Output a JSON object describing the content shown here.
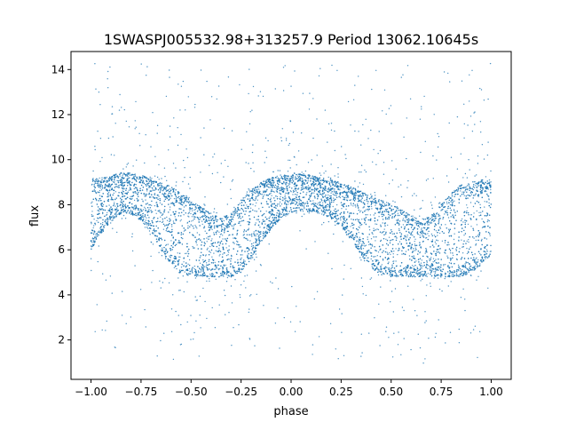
{
  "chart_data": {
    "type": "scatter",
    "title": "1SWASPJ005532.98+313257.9 Period 13062.10645s",
    "xlabel": "phase",
    "ylabel": "flux",
    "xlim": [
      -1.1,
      1.1
    ],
    "ylim": [
      0.25,
      14.8
    ],
    "xticks": [
      -1.0,
      -0.75,
      -0.5,
      -0.25,
      0.0,
      0.25,
      0.5,
      0.75,
      1.0
    ],
    "xtick_labels": [
      "−1.00",
      "−0.75",
      "−0.50",
      "−0.25",
      "0.00",
      "0.25",
      "0.50",
      "0.75",
      "1.00"
    ],
    "yticks": [
      2,
      4,
      6,
      8,
      10,
      12,
      14
    ],
    "ytick_labels": [
      "2",
      "4",
      "6",
      "8",
      "10",
      "12",
      "14"
    ],
    "grid": false,
    "legend": "none",
    "marker_color": "#1f77b4",
    "series": [
      {
        "x": [
          -1.0,
          -0.95,
          -0.9,
          -0.85,
          -0.8,
          -0.75,
          -0.7,
          -0.65,
          -0.6,
          -0.55,
          -0.5,
          -0.45,
          -0.4,
          -0.35,
          -0.3,
          -0.25,
          -0.2,
          -0.15,
          -0.1,
          -0.05,
          0.0,
          0.05,
          0.1,
          0.15,
          0.2,
          0.25,
          0.3,
          0.35,
          0.4,
          0.45,
          0.5,
          0.55,
          0.6,
          0.65,
          0.7,
          0.75,
          0.8,
          0.85,
          0.9,
          0.95,
          1.0
        ],
        "y_upper": [
          9.1,
          9.2,
          9.3,
          9.4,
          9.4,
          9.3,
          9.2,
          9.0,
          8.8,
          8.5,
          8.2,
          7.9,
          7.6,
          7.4,
          7.6,
          8.2,
          8.7,
          9.0,
          9.2,
          9.3,
          9.4,
          9.4,
          9.3,
          9.2,
          9.1,
          9.0,
          8.8,
          8.6,
          8.4,
          8.2,
          8.0,
          7.8,
          7.5,
          7.3,
          7.5,
          8.0,
          8.5,
          8.9,
          9.0,
          9.1,
          9.1
        ],
        "y_lower": [
          6.0,
          6.7,
          7.3,
          7.6,
          7.6,
          7.3,
          6.8,
          6.0,
          5.3,
          4.9,
          4.8,
          4.8,
          4.8,
          4.8,
          4.8,
          5.0,
          5.6,
          6.3,
          6.9,
          7.4,
          7.6,
          7.7,
          7.7,
          7.6,
          7.4,
          7.0,
          6.4,
          5.8,
          5.2,
          4.9,
          4.8,
          4.8,
          4.8,
          4.8,
          4.8,
          4.8,
          4.8,
          4.8,
          5.0,
          5.3,
          5.8
        ]
      }
    ],
    "outlier_range": [
      0.9,
      14.3
    ]
  }
}
